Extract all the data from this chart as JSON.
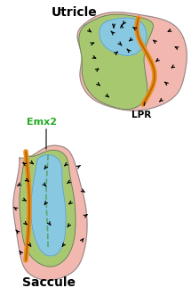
{
  "title_utricle": "Utricle",
  "title_saccule": "Saccule",
  "label_emx2": "Emx2",
  "label_lpr": "LPR",
  "color_pink": "#f2b8b0",
  "color_green": "#a8c870",
  "color_blue": "#88c8e0",
  "color_orange": "#e89020",
  "color_orange_dark": "#b86000",
  "color_bg": "#ffffff",
  "figsize": [
    2.15,
    3.32
  ],
  "dpi": 100
}
